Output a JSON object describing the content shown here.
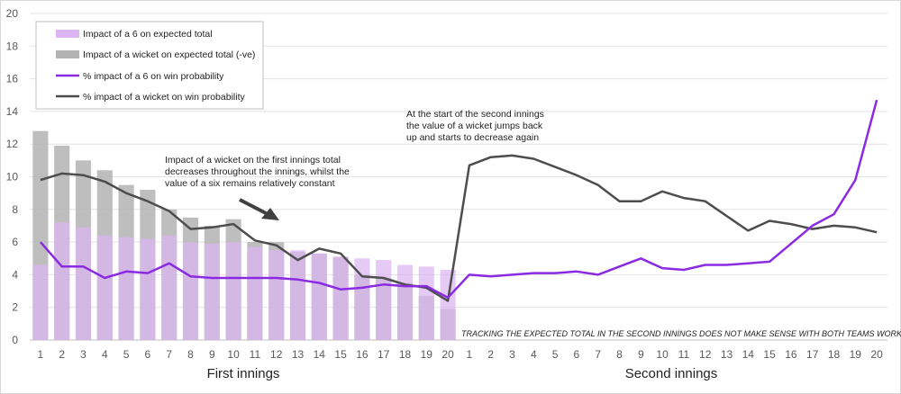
{
  "chart_data": {
    "type": "bar+line",
    "ylim": [
      0,
      20
    ],
    "yticks": [
      "0",
      "2",
      "4",
      "6",
      "8",
      "10",
      "12",
      "14",
      "16",
      "18",
      "20"
    ],
    "x_first": [
      "1",
      "2",
      "3",
      "4",
      "5",
      "6",
      "7",
      "8",
      "9",
      "10",
      "11",
      "12",
      "13",
      "14",
      "15",
      "16",
      "17",
      "18",
      "19",
      "20"
    ],
    "x_second": [
      "1",
      "2",
      "3",
      "4",
      "5",
      "6",
      "7",
      "8",
      "9",
      "10",
      "11",
      "12",
      "13",
      "14",
      "15",
      "16",
      "17",
      "18",
      "19",
      "20"
    ],
    "group_labels": [
      "First innings",
      "Second innings"
    ],
    "series": [
      {
        "name": "Impact of a 6 on expected total",
        "kind": "bar",
        "color": "#dcb6f2",
        "values": [
          4.6,
          7.2,
          6.9,
          6.4,
          6.3,
          6.2,
          6.4,
          6.0,
          5.9,
          6.0,
          5.7,
          5.5,
          5.5,
          5.3,
          5.1,
          5.0,
          4.9,
          4.6,
          4.5,
          4.3
        ]
      },
      {
        "name": "Impact of a wicket on expected total (-ve)",
        "kind": "bar",
        "color": "#b3b3b3",
        "values": [
          12.8,
          11.9,
          11.0,
          10.4,
          9.5,
          9.2,
          8.0,
          7.5,
          7.0,
          7.4,
          6.0,
          6.0,
          5.4,
          5.3,
          5.1,
          4.0,
          3.8,
          3.5,
          2.7,
          1.9
        ]
      },
      {
        "name": "% impact of a 6 on win probability",
        "kind": "line",
        "color": "#8a2be2",
        "first": [
          6.0,
          4.5,
          4.5,
          3.8,
          4.2,
          4.1,
          4.7,
          3.9,
          3.8,
          3.8,
          3.8,
          3.8,
          3.7,
          3.5,
          3.1,
          3.2,
          3.4,
          3.3,
          3.3,
          2.6
        ],
        "second": [
          4.0,
          3.9,
          4.0,
          4.1,
          4.1,
          4.2,
          4.0,
          4.5,
          5.0,
          4.4,
          4.3,
          4.6,
          4.6,
          4.7,
          4.8,
          5.9,
          7.0,
          7.7,
          9.8,
          14.7
        ]
      },
      {
        "name": "% impact of a wicket on win probability",
        "kind": "line",
        "color": "#4d4d4d",
        "first": [
          9.8,
          10.2,
          10.1,
          9.7,
          9.0,
          8.5,
          7.9,
          6.8,
          6.9,
          7.1,
          6.1,
          5.8,
          4.9,
          5.6,
          5.3,
          3.9,
          3.8,
          3.4,
          3.2,
          2.4
        ],
        "second": [
          10.7,
          11.2,
          11.3,
          11.1,
          10.6,
          10.1,
          9.5,
          8.5,
          8.5,
          9.1,
          8.7,
          8.5,
          7.6,
          6.7,
          7.3,
          7.1,
          6.8,
          7.0,
          6.9,
          6.6
        ]
      }
    ],
    "annotations": {
      "first_innings": [
        "Impact of a wicket on the first innings total",
        "decreases throughout the innings, whilst the",
        "value of a six remains relatively constant"
      ],
      "second_innings": [
        "At the start of the second innings",
        "the value of a wicket jumps back",
        "up and starts to decrease again"
      ],
      "note": "TRACKING THE EXPECTED TOTAL IN THE SECOND INNINGS DOES NOT MAKE SENSE WITH BOTH TEAMS WORKING TO A TARGET"
    }
  }
}
